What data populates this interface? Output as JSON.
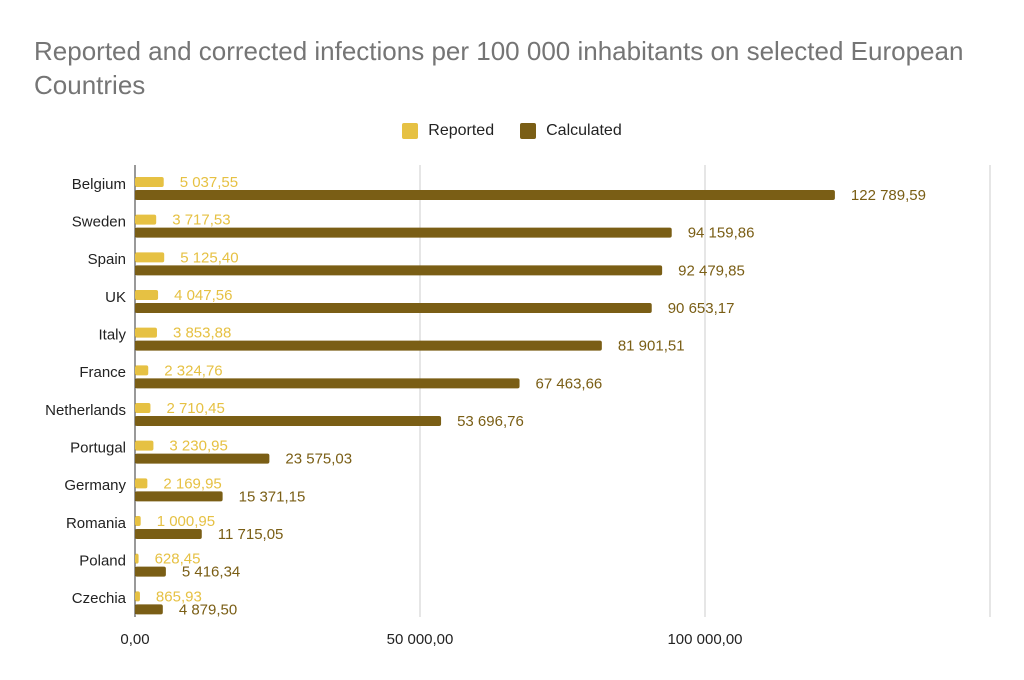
{
  "chart_data": {
    "type": "bar",
    "orientation": "horizontal",
    "title": "Reported and corrected infections per 100 000 inhabitants on selected European Countries",
    "categories": [
      "Belgium",
      "Sweden",
      "Spain",
      "UK",
      "Italy",
      "France",
      "Netherlands",
      "Portugal",
      "Germany",
      "Romania",
      "Poland",
      "Czechia"
    ],
    "series": [
      {
        "name": "Reported",
        "color": "#e6c143",
        "values": [
          5037.55,
          3717.53,
          5125.4,
          4047.56,
          3853.88,
          2324.76,
          2710.45,
          3230.95,
          2169.95,
          1000.95,
          628.45,
          865.93
        ],
        "labels": [
          "5 037,55",
          "3 717,53",
          "5 125,40",
          "4 047,56",
          "3 853,88",
          "2 324,76",
          "2 710,45",
          "3 230,95",
          "2 169,95",
          "1 000,95",
          "628,45",
          "865,93"
        ]
      },
      {
        "name": "Calculated",
        "color": "#7a5e15",
        "values": [
          122789.59,
          94159.86,
          92479.85,
          90653.17,
          81901.51,
          67463.66,
          53696.76,
          23575.03,
          15371.15,
          11715.05,
          5416.34,
          4879.5
        ],
        "labels": [
          "122 789,59",
          "94 159,86",
          "92 479,85",
          "90 653,17",
          "81 901,51",
          "67 463,66",
          "53 696,76",
          "23 575,03",
          "15 371,15",
          "11 715,05",
          "5 416,34",
          "4 879,50"
        ]
      }
    ],
    "x_ticks": [
      0,
      50000,
      100000
    ],
    "x_tick_labels": [
      "0,00",
      "50 000,00",
      "100 000,00"
    ],
    "xlim": [
      0,
      150000
    ],
    "grid": true,
    "legend_position": "top-center"
  }
}
